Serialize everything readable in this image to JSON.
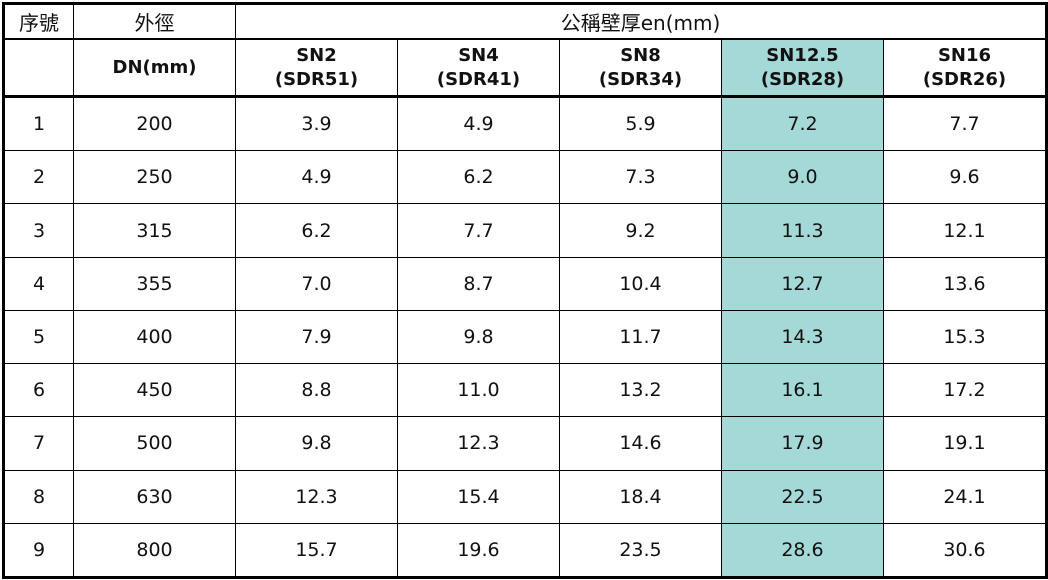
{
  "header": {
    "seq": "序號",
    "od": "外徑",
    "wall": "公稱壁厚en(mm)",
    "dn": "DN(mm)",
    "classes": [
      {
        "sn": "SN2",
        "sdr": "(SDR51)"
      },
      {
        "sn": "SN4",
        "sdr": "(SDR41)"
      },
      {
        "sn": "SN8",
        "sdr": "(SDR34)"
      },
      {
        "sn": "SN12.5",
        "sdr": "(SDR28)"
      },
      {
        "sn": "SN16",
        "sdr": "(SDR26)"
      }
    ]
  },
  "highlight_color": "#a5d9d8",
  "rows": [
    {
      "seq": "1",
      "dn": "200",
      "v": [
        "3.9",
        "4.9",
        "5.9",
        "7.2",
        "7.7"
      ]
    },
    {
      "seq": "2",
      "dn": "250",
      "v": [
        "4.9",
        "6.2",
        "7.3",
        "9.0",
        "9.6"
      ]
    },
    {
      "seq": "3",
      "dn": "315",
      "v": [
        "6.2",
        "7.7",
        "9.2",
        "11.3",
        "12.1"
      ]
    },
    {
      "seq": "4",
      "dn": "355",
      "v": [
        "7.0",
        "8.7",
        "10.4",
        "12.7",
        "13.6"
      ]
    },
    {
      "seq": "5",
      "dn": "400",
      "v": [
        "7.9",
        "9.8",
        "11.7",
        "14.3",
        "15.3"
      ]
    },
    {
      "seq": "6",
      "dn": "450",
      "v": [
        "8.8",
        "11.0",
        "13.2",
        "16.1",
        "17.2"
      ]
    },
    {
      "seq": "7",
      "dn": "500",
      "v": [
        "9.8",
        "12.3",
        "14.6",
        "17.9",
        "19.1"
      ]
    },
    {
      "seq": "8",
      "dn": "630",
      "v": [
        "12.3",
        "15.4",
        "18.4",
        "22.5",
        "24.1"
      ]
    },
    {
      "seq": "9",
      "dn": "800",
      "v": [
        "15.7",
        "19.6",
        "23.5",
        "28.6",
        "30.6"
      ]
    }
  ]
}
